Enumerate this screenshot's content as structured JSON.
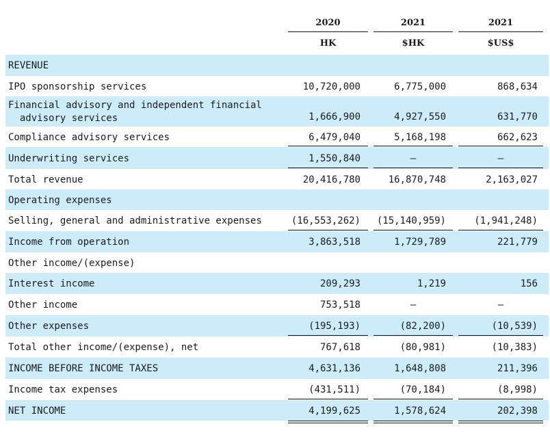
{
  "header": {
    "years": [
      "2020",
      "2021",
      "2021"
    ],
    "currencies": [
      "HK",
      "$HK",
      "$US$"
    ]
  },
  "rows": [
    {
      "label": "REVENUE",
      "v": [
        "",
        "",
        ""
      ]
    },
    {
      "label": "IPO sponsorship services",
      "v": [
        "10,720,000",
        "6,775,000",
        "868,634"
      ]
    },
    {
      "label": "Financial advisory and independent financial\n  advisory services",
      "v": [
        "1,666,900",
        "4,927,550",
        "631,770"
      ]
    },
    {
      "label": "Compliance advisory services",
      "v": [
        "6,479,040",
        "5,168,198",
        "662,623"
      ]
    },
    {
      "label": "Underwriting services",
      "v": [
        "1,550,840",
        "—",
        "—"
      ]
    },
    {
      "label": "Total revenue",
      "v": [
        "20,416,780",
        "16,870,748",
        "2,163,027"
      ]
    },
    {
      "label": "Operating expenses",
      "v": [
        "",
        "",
        ""
      ]
    },
    {
      "label": "Selling, general and administrative expenses",
      "v": [
        "(16,553,262)",
        "(15,140,959)",
        "(1,941,248)"
      ]
    },
    {
      "label": "Income from operation",
      "v": [
        "3,863,518",
        "1,729,789",
        "221,779"
      ]
    },
    {
      "label": "Other income/(expense)",
      "v": [
        "",
        "",
        ""
      ]
    },
    {
      "label": "Interest income",
      "v": [
        "209,293",
        "1,219",
        "156"
      ]
    },
    {
      "label": "Other income",
      "v": [
        "753,518",
        "—",
        "—"
      ]
    },
    {
      "label": "Other expenses",
      "v": [
        "(195,193)",
        "(82,200)",
        "(10,539)"
      ]
    },
    {
      "label": "Total other income/(expense), net",
      "v": [
        "767,618",
        "(80,981)",
        "(10,383)"
      ]
    },
    {
      "label": "INCOME BEFORE INCOME TAXES",
      "v": [
        "4,631,136",
        "1,648,808",
        "211,396"
      ]
    },
    {
      "label": "Income tax expenses",
      "v": [
        "(431,511)",
        "(70,184)",
        "(8,998)"
      ]
    },
    {
      "label": "NET INCOME",
      "v": [
        "4,199,625",
        "1,578,624",
        "202,398"
      ]
    }
  ]
}
